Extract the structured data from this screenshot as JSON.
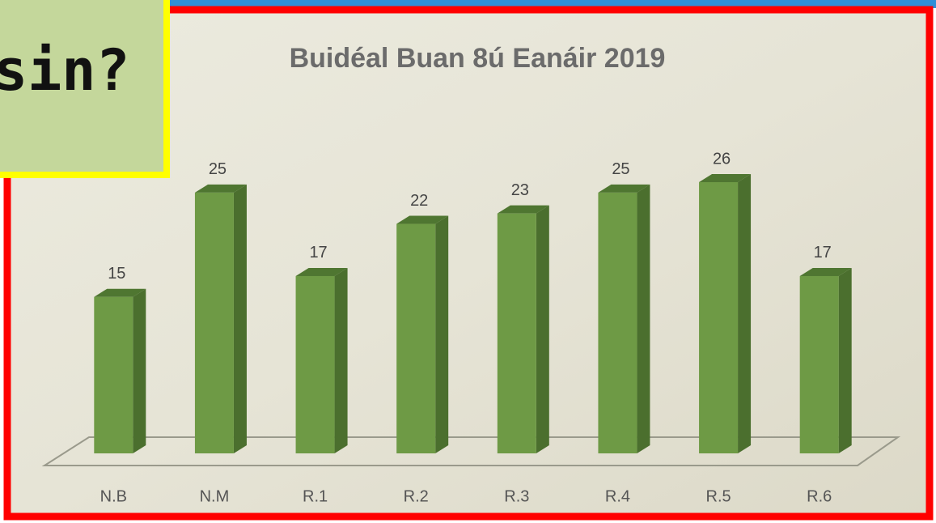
{
  "callout": {
    "text": "sin?"
  },
  "chart_data": {
    "type": "bar",
    "title": "Buidéal Buan 8ú Eanáir 2019",
    "categories": [
      "N.B",
      "N.M",
      "R.1",
      "R.2",
      "R.3",
      "R.4",
      "R.5",
      "R.6"
    ],
    "values": [
      15,
      25,
      17,
      22,
      23,
      25,
      26,
      17
    ],
    "color": "#6e9a45"
  }
}
